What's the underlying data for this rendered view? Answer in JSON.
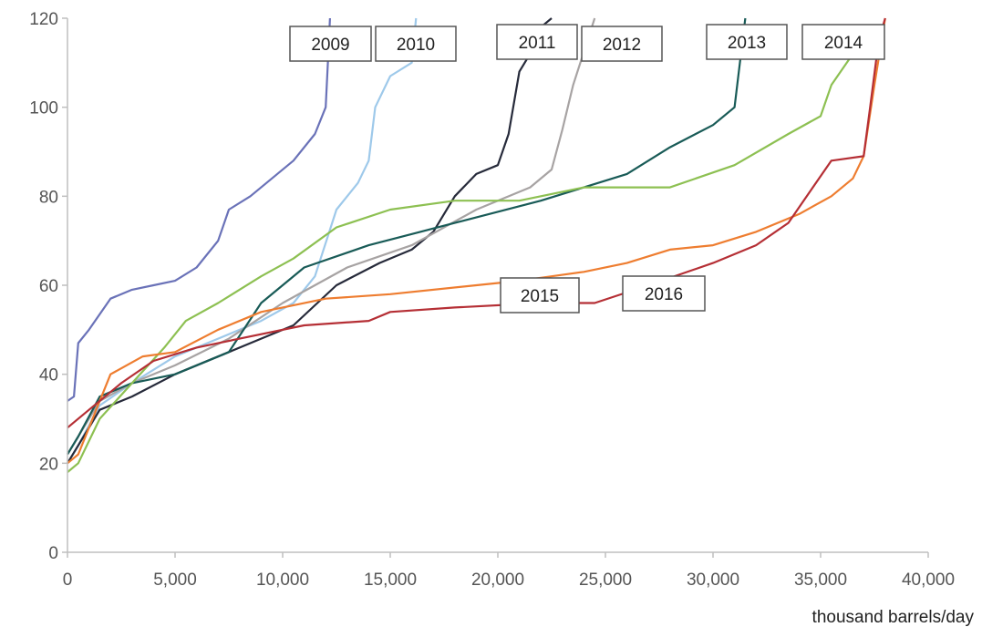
{
  "chart_data": {
    "type": "line",
    "title": "",
    "xlabel": "thousand barrels/day",
    "ylabel": "",
    "xlim": [
      0,
      40000
    ],
    "ylim": [
      0,
      120
    ],
    "x_ticks": [
      0,
      5000,
      10000,
      15000,
      20000,
      25000,
      30000,
      35000,
      40000
    ],
    "x_tick_labels": [
      "0",
      "5,000",
      "10,000",
      "15,000",
      "20,000",
      "25,000",
      "30,000",
      "35,000",
      "40,000"
    ],
    "y_ticks": [
      0,
      20,
      40,
      60,
      80,
      100,
      120
    ],
    "y_tick_labels": [
      "0",
      "20",
      "40",
      "60",
      "80",
      "100",
      "120"
    ],
    "grid": false,
    "legend": "inline labels",
    "series": [
      {
        "name": "2009",
        "color": "#6a72b8",
        "x": [
          0,
          300,
          500,
          1000,
          2000,
          3000,
          4000,
          5000,
          6000,
          7000,
          7500,
          8500,
          9500,
          10500,
          11500,
          12000,
          12100,
          12200
        ],
        "y": [
          34,
          35,
          47,
          50,
          57,
          59,
          60,
          61,
          64,
          70,
          77,
          80,
          84,
          88,
          94,
          100,
          110,
          120
        ]
      },
      {
        "name": "2010",
        "color": "#9ec9ea",
        "x": [
          0,
          500,
          1500,
          3000,
          5000,
          7000,
          9000,
          10500,
          11500,
          12500,
          13500,
          14000,
          14300,
          15000,
          16000,
          16200
        ],
        "y": [
          20,
          24,
          33,
          38,
          44,
          48,
          52,
          56,
          62,
          77,
          83,
          88,
          100,
          107,
          110,
          120
        ]
      },
      {
        "name": "2011",
        "color": "#262a3a",
        "x": [
          0,
          500,
          1500,
          3000,
          5000,
          7500,
          9000,
          10500,
          12500,
          14500,
          16000,
          17000,
          18000,
          19000,
          20000,
          20500,
          21000,
          21500,
          22000,
          22500
        ],
        "y": [
          20,
          24,
          32,
          35,
          40,
          45,
          48,
          51,
          60,
          65,
          68,
          72,
          80,
          85,
          87,
          94,
          108,
          112,
          118,
          120
        ]
      },
      {
        "name": "2012",
        "color": "#a7a3a3",
        "x": [
          0,
          500,
          1500,
          3000,
          5000,
          7500,
          10000,
          13000,
          16000,
          19000,
          21500,
          22500,
          23000,
          23500,
          24500
        ],
        "y": [
          22,
          26,
          34,
          38,
          42,
          48,
          56,
          64,
          69,
          77,
          82,
          86,
          95,
          105,
          120
        ]
      },
      {
        "name": "2013",
        "color": "#195b57",
        "x": [
          0,
          500,
          1500,
          3000,
          5000,
          7500,
          9000,
          11000,
          14000,
          18000,
          22000,
          24000,
          26000,
          28000,
          30000,
          31000,
          31200,
          31500
        ],
        "y": [
          22,
          26,
          35,
          38,
          40,
          45,
          56,
          64,
          69,
          74,
          79,
          82,
          85,
          91,
          96,
          100,
          108,
          120
        ]
      },
      {
        "name": "2014",
        "color": "#8dc052",
        "x": [
          0,
          500,
          1500,
          3000,
          4500,
          5500,
          7000,
          9000,
          10500,
          12500,
          15000,
          18000,
          21000,
          24000,
          28000,
          31000,
          33500,
          35000,
          35500,
          36500
        ],
        "y": [
          18,
          20,
          30,
          38,
          46,
          52,
          56,
          62,
          66,
          73,
          77,
          79,
          79,
          82,
          82,
          87,
          94,
          98,
          105,
          112
        ]
      },
      {
        "name": "2015",
        "color": "#ee7d30",
        "x": [
          0,
          500,
          1000,
          2000,
          3500,
          5000,
          7000,
          9000,
          12000,
          15000,
          19000,
          21000,
          22500,
          24000,
          26000,
          28000,
          30000,
          32000,
          34000,
          35500,
          36500,
          37000,
          37500,
          38000
        ],
        "y": [
          20,
          22,
          28,
          40,
          44,
          45,
          50,
          54,
          57,
          58,
          60,
          61,
          62,
          63,
          65,
          68,
          69,
          72,
          76,
          80,
          84,
          89,
          105,
          120
        ]
      },
      {
        "name": "2016",
        "color": "#b52f35",
        "x": [
          0,
          1000,
          2500,
          4000,
          6000,
          8000,
          11000,
          14000,
          15000,
          18000,
          22000,
          24500,
          27000,
          30000,
          32000,
          33500,
          34500,
          35500,
          37000,
          37300,
          37700,
          38000
        ],
        "y": [
          28,
          32,
          38,
          43,
          46,
          48,
          51,
          52,
          54,
          55,
          56,
          56,
          60,
          65,
          69,
          74,
          81,
          88,
          89,
          100,
          115,
          120
        ]
      }
    ],
    "series_label_boxes": [
      {
        "text": "2009"
      },
      {
        "text": "2010"
      },
      {
        "text": "2011"
      },
      {
        "text": "2012"
      },
      {
        "text": "2013"
      },
      {
        "text": "2014"
      },
      {
        "text": "2015"
      },
      {
        "text": "2016"
      }
    ]
  }
}
